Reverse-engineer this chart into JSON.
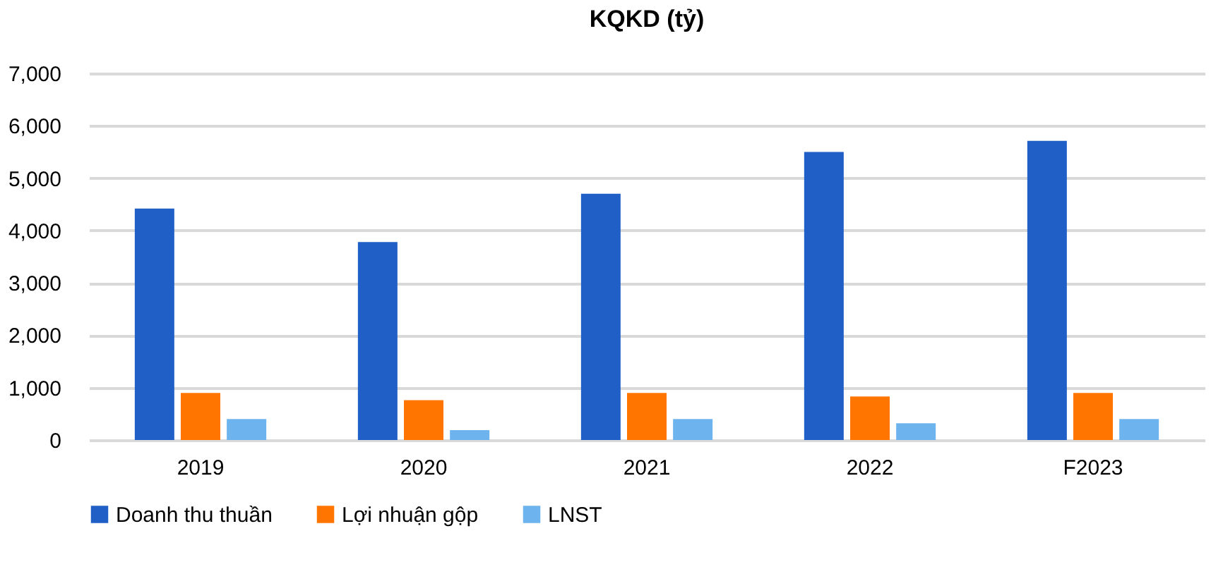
{
  "chart_data": {
    "type": "bar",
    "title": "KQKD (tỷ)",
    "categories": [
      "2019",
      "2020",
      "2021",
      "2022",
      "F2023"
    ],
    "series": [
      {
        "name": "Doanh thu thuần",
        "color": "#1f5fc6",
        "values": [
          4420,
          3780,
          4700,
          5500,
          5710
        ]
      },
      {
        "name": "Lợi nhuận gộp",
        "color": "#ff7500",
        "values": [
          900,
          760,
          900,
          830,
          900
        ]
      },
      {
        "name": "LNST",
        "color": "#6db4ee",
        "values": [
          400,
          190,
          400,
          320,
          400
        ]
      }
    ],
    "ylim": [
      0,
      7000
    ],
    "yticks": [
      0,
      {
        "value": 1000,
        "label": "1,000"
      },
      {
        "value": 2000,
        "label": "2,000"
      },
      {
        "value": 3000,
        "label": "3,000"
      },
      {
        "value": 4000,
        "label": "4,000"
      },
      {
        "value": 5000,
        "label": "5,000"
      },
      {
        "value": 6000,
        "label": "6,000"
      },
      {
        "value": 7000,
        "label": "7,000"
      }
    ],
    "grid": "y",
    "legend": "bottom"
  }
}
